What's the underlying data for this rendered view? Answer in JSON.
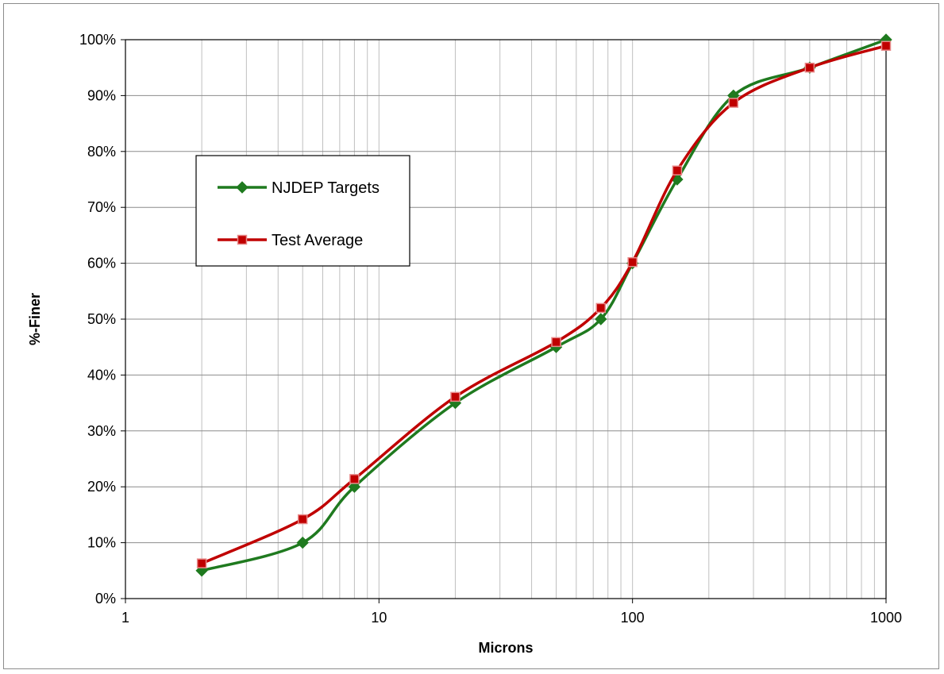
{
  "chart_data": {
    "type": "line",
    "title": "",
    "xlabel": "Microns",
    "ylabel": "%-Finer",
    "xscale": "log",
    "xlim": [
      1,
      1000
    ],
    "ylim": [
      0,
      100
    ],
    "grid": true,
    "legend_position": "left",
    "x_ticks": [
      "1",
      "10",
      "100",
      "1000"
    ],
    "y_ticks": [
      "0%",
      "10%",
      "20%",
      "30%",
      "40%",
      "50%",
      "60%",
      "70%",
      "80%",
      "90%",
      "100%"
    ],
    "series": [
      {
        "name": "NJDEP Targets",
        "color": "#1f7a1f",
        "marker": "diamond",
        "x": [
          2,
          5,
          8,
          20,
          50,
          75,
          100,
          150,
          250,
          500,
          1000
        ],
        "y": [
          5,
          10,
          20,
          35,
          45,
          50,
          60,
          75,
          90,
          95,
          100
        ]
      },
      {
        "name": "Test Average",
        "color": "#c00000",
        "marker": "square",
        "x": [
          2,
          5,
          8,
          20,
          50,
          75,
          100,
          150,
          250,
          500,
          1000
        ],
        "y": [
          6.3,
          14.2,
          21.4,
          36.1,
          45.9,
          52.0,
          60.2,
          76.6,
          88.7,
          95.0,
          98.9
        ]
      }
    ]
  }
}
